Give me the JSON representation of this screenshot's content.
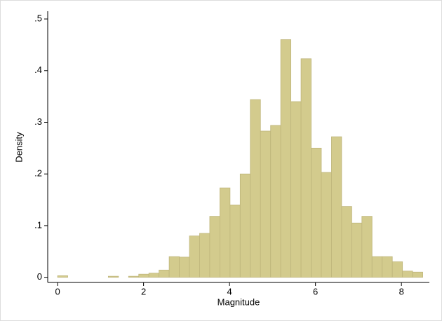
{
  "chart_data": {
    "type": "histogram",
    "xlabel": "Magnitude",
    "ylabel": "Density",
    "bins": [
      0,
      0.236,
      0.472,
      0.708,
      0.944,
      1.18,
      1.416,
      1.652,
      1.888,
      2.124,
      2.36,
      2.596,
      2.832,
      3.068,
      3.304,
      3.54,
      3.776,
      4.012,
      4.248,
      4.484,
      4.72,
      4.956,
      5.192,
      5.428,
      5.664,
      5.9,
      6.136,
      6.372,
      6.608,
      6.844,
      7.08,
      7.316,
      7.552,
      7.788,
      8.024,
      8.26,
      8.496
    ],
    "values": [
      0.003,
      0,
      0,
      0,
      0,
      0.002,
      0,
      0.002,
      0.006,
      0.008,
      0.014,
      0.04,
      0.039,
      0.08,
      0.085,
      0.118,
      0.173,
      0.14,
      0.2,
      0.344,
      0.283,
      0.294,
      0.46,
      0.34,
      0.423,
      0.25,
      0.203,
      0.272,
      0.137,
      0.105,
      0.118,
      0.04,
      0.04,
      0.03,
      0.012,
      0.01
    ],
    "color": "#d3cb8d",
    "xlim": [
      -0.23,
      8.65
    ],
    "ylim": [
      -0.01,
      0.515
    ],
    "xticks": [
      0,
      2,
      4,
      6,
      8
    ],
    "yticks": [
      0,
      {
        "value": 0.1,
        "label": ".1"
      },
      {
        "value": 0.2,
        "label": ".2"
      },
      {
        "value": 0.3,
        "label": ".3"
      },
      {
        "value": 0.4,
        "label": ".4"
      },
      {
        "value": 0.5,
        "label": ".5"
      }
    ]
  }
}
